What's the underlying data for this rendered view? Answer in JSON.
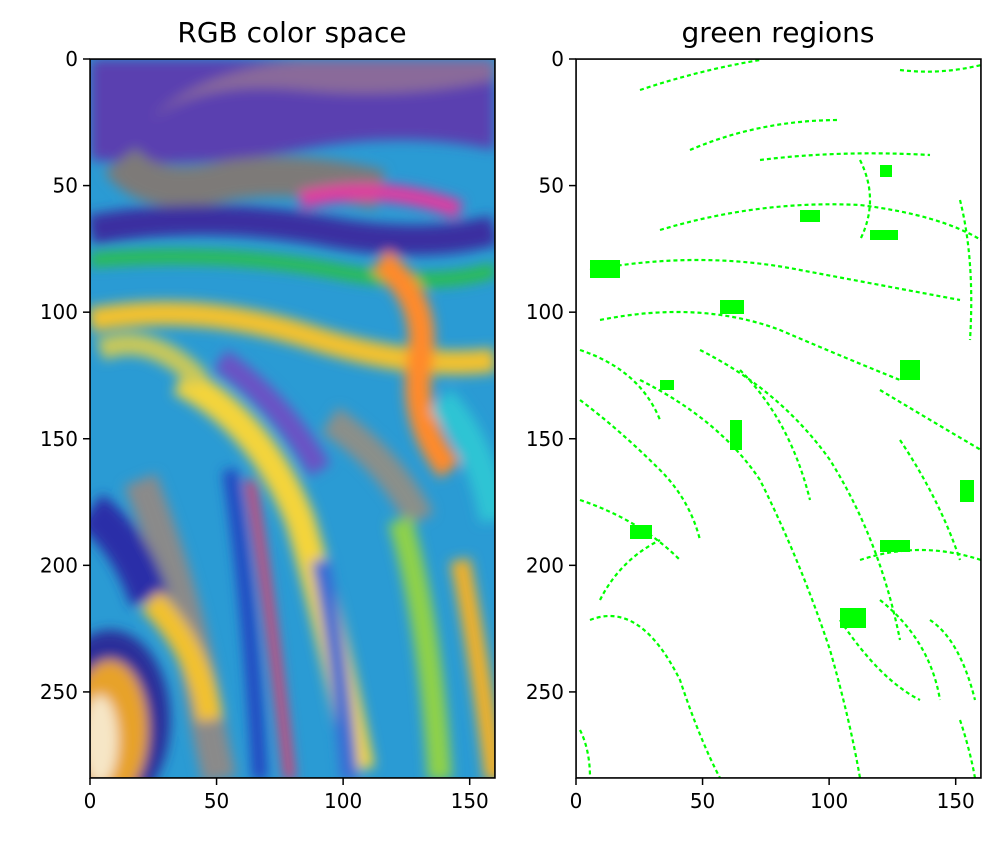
{
  "chart_data": [
    {
      "type": "image",
      "title": "RGB color space",
      "xlim": [
        0,
        160
      ],
      "ylim": [
        284,
        0
      ],
      "xticks": [
        "0",
        "50",
        "100",
        "150"
      ],
      "yticks": [
        "0",
        "50",
        "100",
        "150",
        "200",
        "250"
      ],
      "content": "marbled-multicolor-image"
    },
    {
      "type": "image",
      "title": "green regions",
      "xlim": [
        0,
        160
      ],
      "ylim": [
        284,
        0
      ],
      "xticks": [
        "0",
        "50",
        "100",
        "150"
      ],
      "yticks": [
        "0",
        "50",
        "100",
        "150",
        "200",
        "250"
      ],
      "content": "green-mask",
      "mask_color": "#00ff00",
      "background_color": "#ffffff"
    }
  ]
}
